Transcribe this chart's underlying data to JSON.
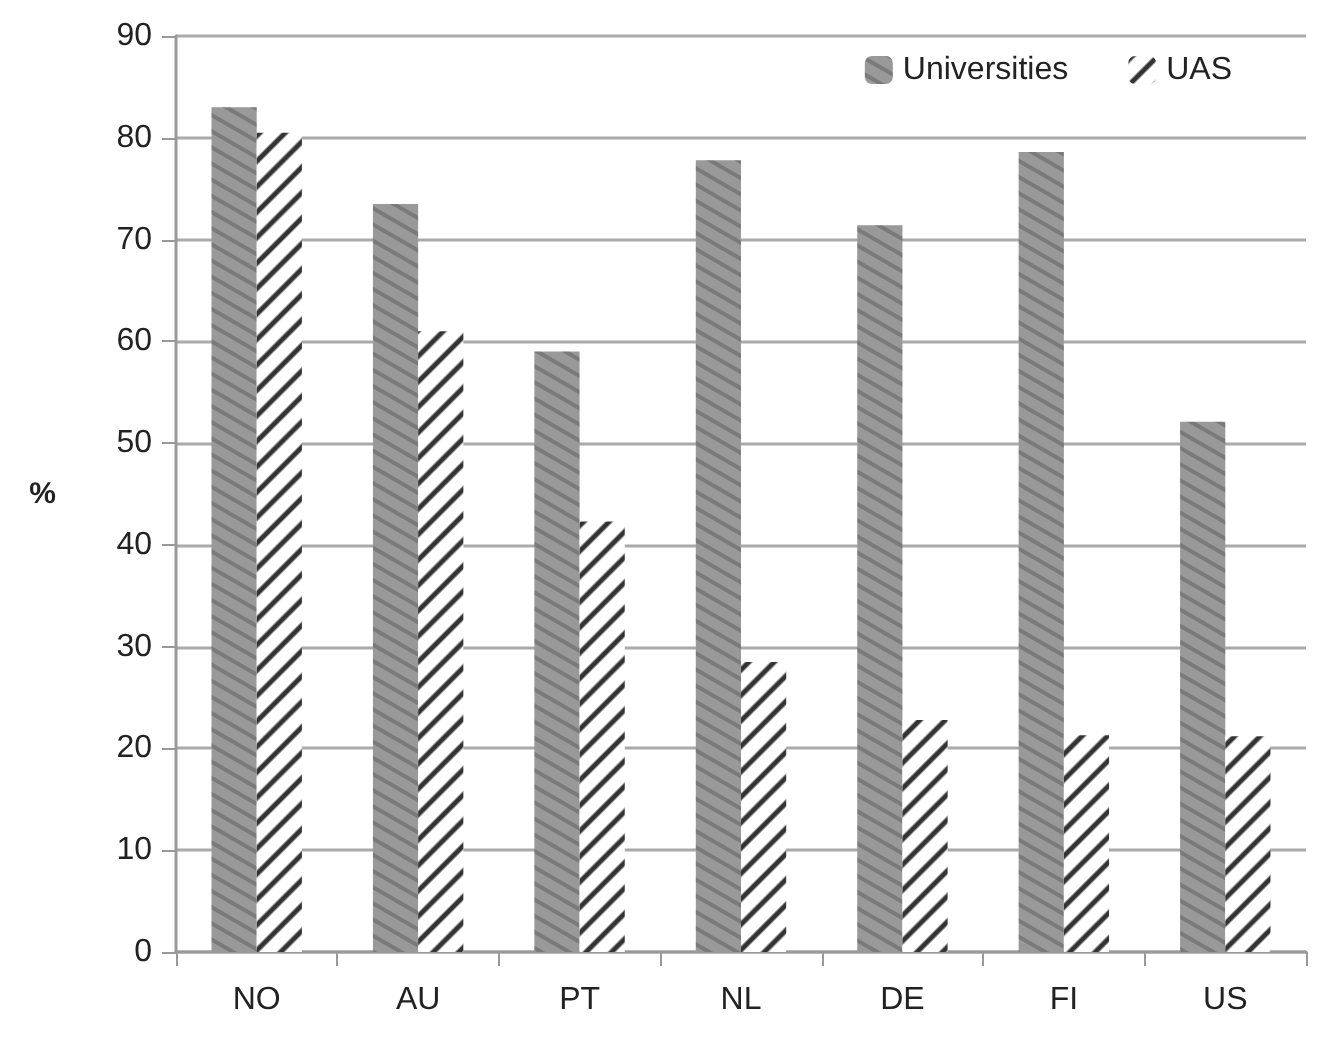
{
  "chart_data": {
    "type": "bar",
    "ylabel": "%",
    "categories": [
      "NO",
      "AU",
      "PT",
      "NL",
      "DE",
      "FI",
      "US"
    ],
    "series": [
      {
        "name": "Universities",
        "color": "#999999",
        "values": [
          83,
          73.5,
          59,
          77.8,
          71.4,
          78.6,
          52.1
        ]
      },
      {
        "name": "UAS",
        "color": "#000000",
        "values": [
          80.5,
          61,
          42.3,
          28.5,
          22.8,
          21.3,
          21.2
        ]
      }
    ],
    "ylim": [
      0,
      90
    ],
    "yticks": [
      0,
      10,
      20,
      30,
      40,
      50,
      60,
      70,
      80,
      90
    ],
    "grid": "y",
    "legend": "top right"
  }
}
